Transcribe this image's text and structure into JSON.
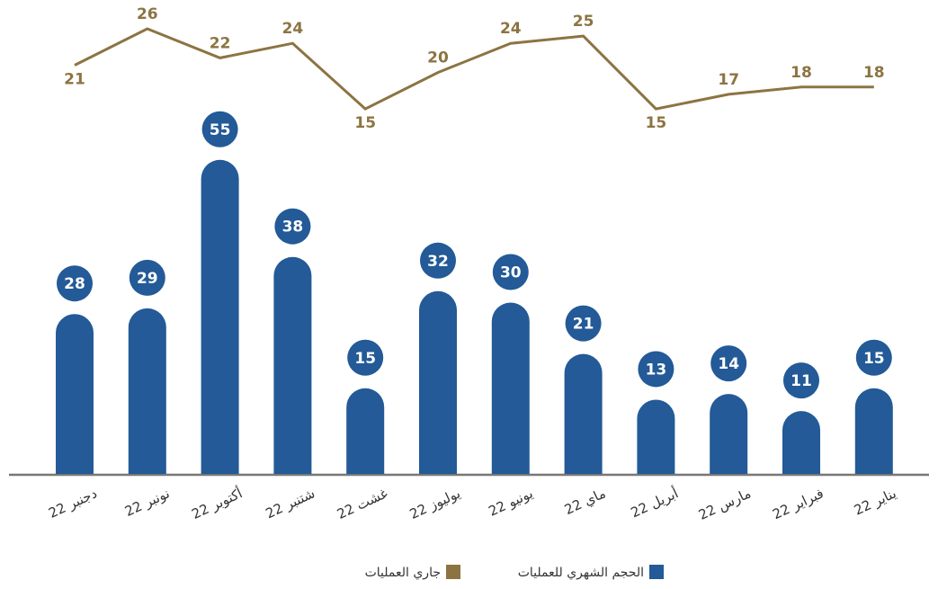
{
  "chart_data": {
    "type": "bar+line",
    "categories": [
      "دجنبر 22",
      "نونبر 22",
      "أكتوبر 22",
      "شتنبر 22",
      "غشت 22",
      "يوليوز 22",
      "يونيو 22",
      "ماي 22",
      "أبريل 22",
      "مارس 22",
      "فبراير 22",
      "يناير 22"
    ],
    "series": [
      {
        "name": "الحجم الشهري للعمليات",
        "color": "#235a97",
        "type": "bar",
        "values": [
          28,
          29,
          55,
          38,
          15,
          32,
          30,
          21,
          13,
          14,
          11,
          15
        ]
      },
      {
        "name": "جاري العمليات",
        "color": "#8c7442",
        "type": "line",
        "values": [
          21,
          26,
          22,
          24,
          15,
          20,
          24,
          25,
          15,
          17,
          18,
          18
        ]
      }
    ]
  }
}
